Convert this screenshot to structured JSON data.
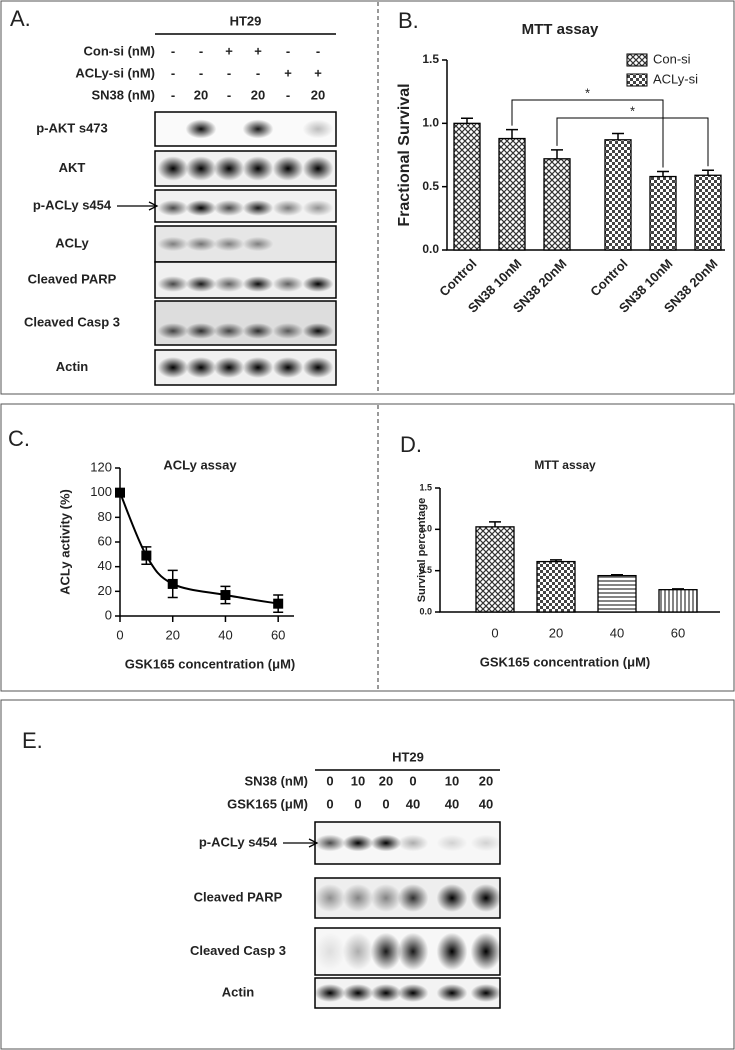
{
  "panel_a": {
    "label": "A.",
    "cell_line": "HT29",
    "conditions": [
      {
        "name": "Con-si (nM)",
        "lanes": [
          "-",
          "-",
          "+",
          "+",
          "-",
          "-"
        ]
      },
      {
        "name": "ACLy-si (nM)",
        "lanes": [
          "-",
          "-",
          "-",
          "-",
          "+",
          "+"
        ]
      },
      {
        "name": "SN38 (nM)",
        "lanes": [
          "-",
          "20",
          "-",
          "20",
          "-",
          "20"
        ]
      }
    ],
    "bands": [
      "p-AKT s473",
      "AKT",
      "p-ACLy s454",
      "ACLy",
      "Cleaved PARP",
      "Cleaved Casp 3",
      "Actin"
    ]
  },
  "chart_data": [
    {
      "type": "bar",
      "label": "B.",
      "title": "MTT assay",
      "y_label": "Fractional Survival",
      "categories": [
        "Control",
        "SN38 10nM",
        "SN38 20nM"
      ],
      "series": [
        {
          "name": "Con-si",
          "color": "#000000",
          "values": [
            1.0,
            0.88,
            0.72
          ],
          "errors": [
            0.04,
            0.07,
            0.07
          ]
        },
        {
          "name": "ACLy-si",
          "color": "#000000",
          "values": [
            0.87,
            0.58,
            0.59
          ],
          "errors": [
            0.05,
            0.04,
            0.04
          ]
        }
      ],
      "ylim": [
        0,
        1.5
      ],
      "yticks": [
        {
          "value": 0,
          "label": "0.0"
        },
        {
          "value": 0.5,
          "label": "0.5"
        },
        {
          "value": 1,
          "label": "1.0"
        },
        {
          "value": 1.5,
          "label": "1.5"
        }
      ],
      "annotations": [
        "*",
        "*"
      ],
      "legend": "top-right"
    },
    {
      "type": "line",
      "label": "C.",
      "title": "ACLy assay",
      "y_label": "ACLy  activity (%)",
      "x_label": "GSK165 concentration (μM)",
      "x": [
        0,
        10,
        20,
        40,
        60
      ],
      "values": [
        100,
        49,
        26,
        17,
        10
      ],
      "errors": [
        0,
        7,
        11,
        7,
        7
      ],
      "color": "#000000",
      "xlim": [
        0,
        66
      ],
      "xticks": [
        0,
        20,
        40,
        60
      ],
      "ylim": [
        0,
        120
      ],
      "yticks": [
        0,
        20,
        40,
        60,
        80,
        100,
        120
      ]
    },
    {
      "type": "bar",
      "label": "D.",
      "title": "MTT assay",
      "y_label": "Survival percentage",
      "x_label": "GSK165 concentration (μM)",
      "categories": [
        "0",
        "20",
        "40",
        "60"
      ],
      "values": [
        1.03,
        0.61,
        0.44,
        0.27
      ],
      "errors": [
        0.06,
        0.02,
        0.01,
        0.01
      ],
      "color": "#000000",
      "ylim": [
        0,
        1.5
      ],
      "yticks": [
        {
          "value": 0,
          "label": "0.0"
        },
        {
          "value": 0.5,
          "label": "0.5"
        },
        {
          "value": 1,
          "label": "1.0"
        },
        {
          "value": 1.5,
          "label": "1.5"
        }
      ]
    }
  ],
  "panel_e": {
    "label": "E.",
    "cell_line": "HT29",
    "conditions": [
      {
        "name": "SN38  (nM)",
        "lanes": [
          "0",
          "10",
          "20",
          "0",
          "10",
          "20"
        ]
      },
      {
        "name": "GSK165 (μM)",
        "lanes": [
          "0",
          "0",
          "0",
          "40",
          "40",
          "40"
        ]
      }
    ],
    "bands": [
      "p-ACLy s454",
      "Cleaved PARP",
      "Cleaved Casp 3",
      "Actin"
    ]
  }
}
